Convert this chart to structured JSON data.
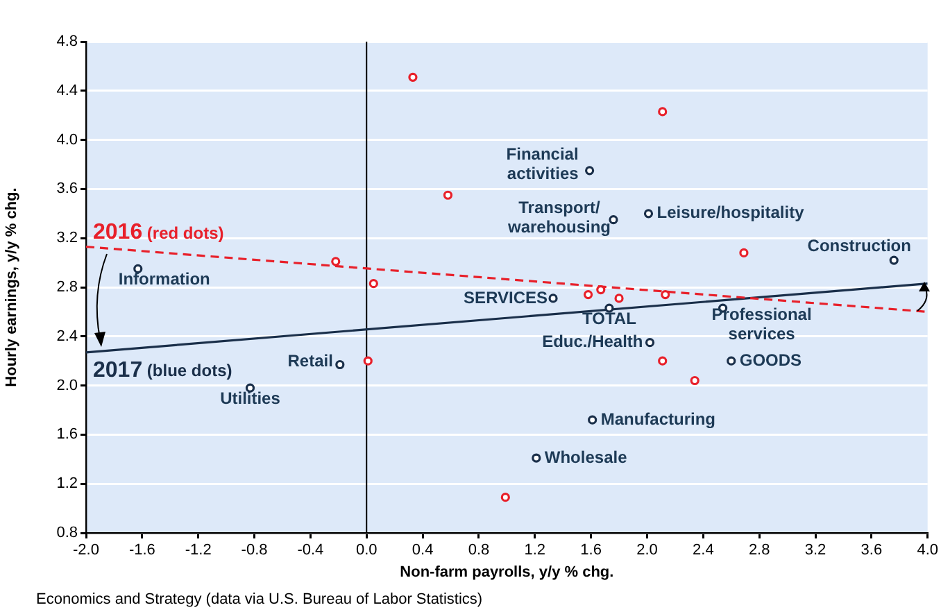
{
  "chart_data": {
    "type": "scatter",
    "xlabel": "Non-farm payrolls, y/y % chg.",
    "ylabel": "Hourly earnings, y/y % chg.",
    "xlim": [
      -2,
      4
    ],
    "ylim": [
      0.8,
      4.8
    ],
    "xticks": [
      {
        "value": -2,
        "label": "-2.0"
      },
      -1.6,
      -1.2,
      -0.8,
      -0.4,
      {
        "value": 0,
        "label": "0.0"
      },
      0.4,
      0.8,
      1.2,
      1.6,
      {
        "value": 2,
        "label": "2.0"
      },
      2.4,
      2.8,
      3.2,
      3.6,
      {
        "value": 4,
        "label": "4.0"
      }
    ],
    "yticks": [
      0.8,
      1.2,
      1.6,
      {
        "value": 2,
        "label": "2.0"
      },
      2.4,
      2.8,
      3.2,
      3.6,
      {
        "value": 4,
        "label": "4.0"
      },
      4.4,
      4.8
    ],
    "grid": "y",
    "legend": false,
    "marker": "circle",
    "series": [
      {
        "color": "#e8202a",
        "x": [
          0.33,
          2.11,
          0.58,
          -0.22,
          2.69,
          0.05,
          0.01,
          0.99,
          1.58,
          1.67,
          1.8,
          2.13,
          2.11,
          2.34
        ],
        "values": [
          4.51,
          4.23,
          3.55,
          3.01,
          3.08,
          2.83,
          2.2,
          1.09,
          2.74,
          2.78,
          2.71,
          2.74,
          2.2,
          2.04
        ]
      },
      {
        "color": "#1a2f4a",
        "x": [
          -1.63,
          -0.19,
          -0.83,
          1.59,
          1.76,
          2.01,
          3.76,
          1.33,
          1.73,
          2.54,
          2.02,
          2.6,
          1.61,
          1.21
        ],
        "values": [
          2.95,
          2.17,
          1.98,
          3.75,
          3.35,
          3.4,
          3.02,
          2.71,
          2.63,
          2.63,
          2.35,
          2.2,
          1.72,
          1.41
        ]
      },
      {
        "type": "line",
        "name": "2016 (red dots)",
        "color": "#e8202a",
        "line_style": "dashed",
        "marker": "none",
        "x": [
          -2,
          4
        ],
        "values": [
          3.13,
          2.6
        ]
      },
      {
        "type": "line",
        "name": "2017 (blue dots)",
        "color": "#1a2f4a",
        "line_style": "solid",
        "marker": "none",
        "x": [
          -2,
          4
        ],
        "values": [
          2.27,
          2.83
        ]
      }
    ],
    "ref_lines": [
      {
        "axis": "x",
        "value": 0,
        "color": "#000000"
      }
    ],
    "annotations": [
      {
        "text": "Information",
        "x": -1.63,
        "y": 2.95
      },
      {
        "text": "Retail",
        "x": -0.19,
        "y": 2.17
      },
      {
        "text": "Utilities",
        "x": -0.83,
        "y": 1.98
      },
      {
        "text": "Financial\nactivities",
        "x": 1.59,
        "y": 3.75
      },
      {
        "text": "Transport/\nwarehousing",
        "x": 1.76,
        "y": 3.35
      },
      {
        "text": "Leisure/hospitality",
        "x": 2.01,
        "y": 3.4
      },
      {
        "text": "Construction",
        "x": 3.76,
        "y": 3.02
      },
      {
        "text": "SERVICES",
        "x": 1.33,
        "y": 2.71
      },
      {
        "text": "TOTAL",
        "x": 1.73,
        "y": 2.63
      },
      {
        "text": "Professional\nservices",
        "x": 2.54,
        "y": 2.63
      },
      {
        "text": "Educ./Health",
        "x": 2.02,
        "y": 2.35
      },
      {
        "text": "GOODS",
        "x": 2.6,
        "y": 2.2
      },
      {
        "text": "Manufacturing",
        "x": 1.61,
        "y": 1.72
      },
      {
        "text": "Wholesale",
        "x": 1.21,
        "y": 1.41
      },
      "Economics and Strategy (data via U.S. Bureau of Labor Statistics)"
    ]
  }
}
